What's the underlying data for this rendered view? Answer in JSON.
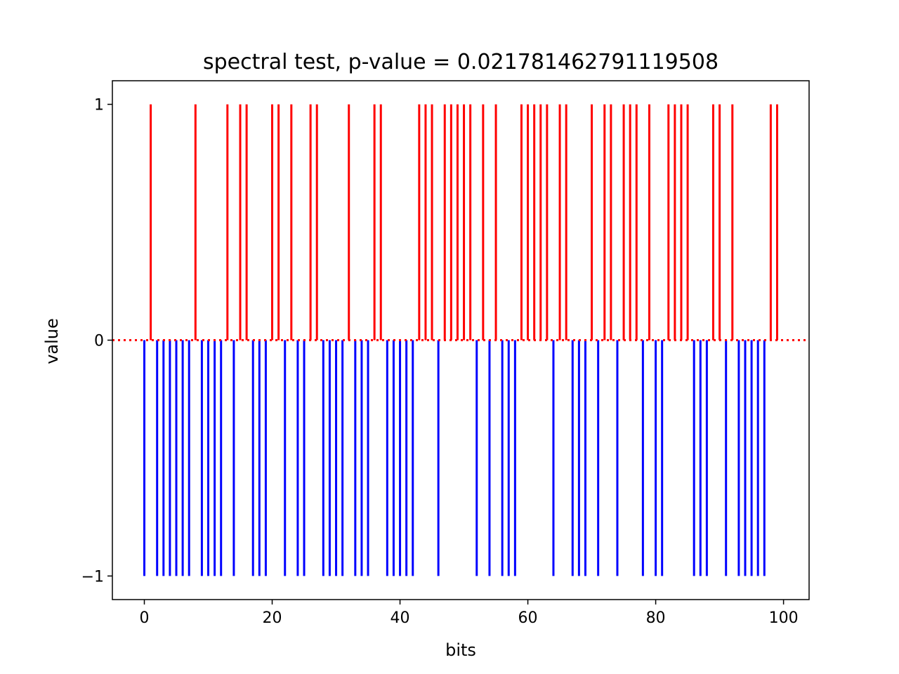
{
  "chart_data": {
    "type": "bar",
    "title": "spectral test, p-value = 0.021781462791119508",
    "xlabel": "bits",
    "ylabel": "value",
    "xlim": [
      -5,
      104
    ],
    "ylim": [
      -1.1,
      1.1
    ],
    "x_ticks": [
      0,
      20,
      40,
      60,
      80,
      100
    ],
    "x_tick_labels": [
      "0",
      "20",
      "40",
      "60",
      "80",
      "100"
    ],
    "y_ticks": [
      -1,
      0,
      1
    ],
    "y_tick_labels": [
      "−1",
      "0",
      "1"
    ],
    "grid": false,
    "legend": "none",
    "baseline": {
      "y": 0,
      "style": "dotted",
      "color": "#ff0000"
    },
    "colors": {
      "one": "#ff0000",
      "zero": "#0000ff"
    },
    "bits": [
      0,
      1,
      0,
      0,
      0,
      0,
      0,
      0,
      1,
      0,
      0,
      0,
      0,
      1,
      0,
      1,
      1,
      0,
      0,
      0,
      1,
      1,
      0,
      1,
      0,
      0,
      1,
      1,
      0,
      0,
      0,
      0,
      1,
      0,
      0,
      0,
      1,
      1,
      0,
      0,
      0,
      0,
      0,
      1,
      1,
      1,
      0,
      1,
      1,
      1,
      1,
      1,
      0,
      1,
      0,
      1,
      0,
      0,
      0,
      1,
      1,
      1,
      1,
      1,
      0,
      1,
      1,
      0,
      0,
      0,
      1,
      0,
      1,
      1,
      0,
      1,
      1,
      1,
      0,
      1,
      0,
      0,
      1,
      1,
      1,
      1,
      0,
      0,
      0,
      1,
      1,
      0,
      1,
      0,
      0,
      0,
      0,
      0,
      1,
      1
    ]
  }
}
